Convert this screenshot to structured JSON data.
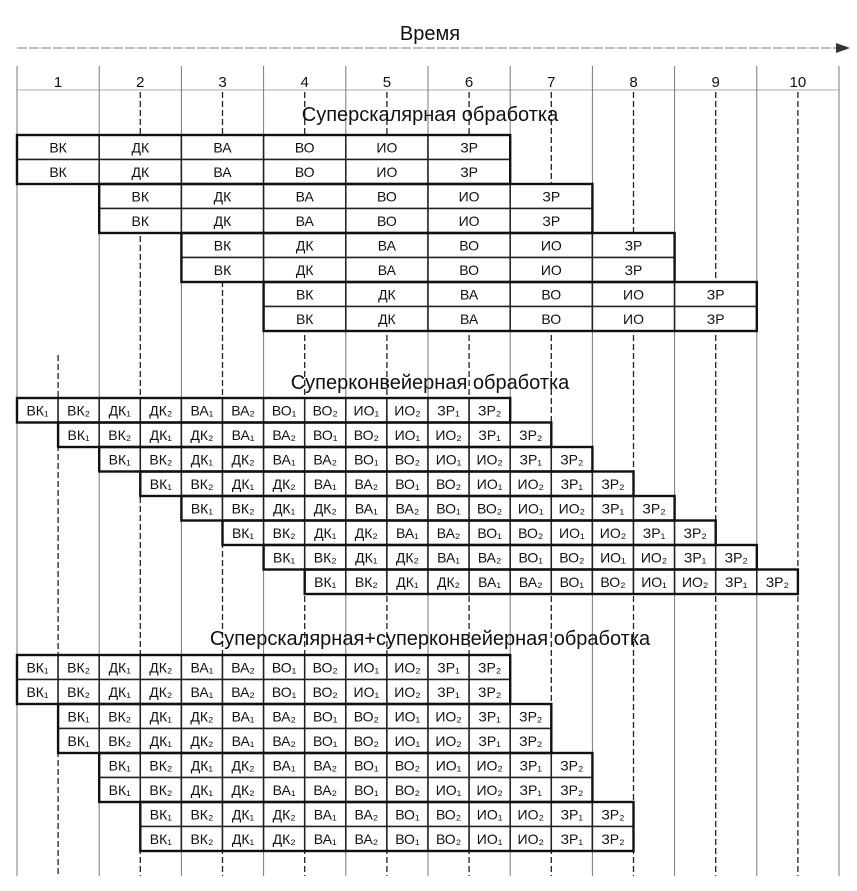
{
  "axis": {
    "title": "Время",
    "time_labels": [
      "1",
      "2",
      "3",
      "4",
      "5",
      "6",
      "7",
      "8",
      "9",
      "10"
    ]
  },
  "sections": [
    {
      "title": "Суперскалярная обработка",
      "unit": "cycle",
      "rows_per_group": 2,
      "starts": [
        0,
        0,
        1,
        1,
        2,
        2,
        3,
        3
      ],
      "stages": [
        "ВК",
        "ДК",
        "ВА",
        "ВО",
        "ИО",
        "ЗР"
      ]
    },
    {
      "title": "Суперконвейерная обработка",
      "unit": "half-cycle",
      "rows_per_group": 1,
      "starts": [
        0,
        1,
        2,
        3,
        4,
        5,
        6,
        7
      ],
      "stages": [
        "ВК₁",
        "ВК₂",
        "ДК₁",
        "ДК₂",
        "ВА₁",
        "ВА₂",
        "ВО₁",
        "ВО₂",
        "ИО₁",
        "ИО₂",
        "ЗР₁",
        "ЗР₂"
      ]
    },
    {
      "title": "Суперскалярная+суперконвейерная обработка",
      "unit": "half-cycle",
      "rows_per_group": 2,
      "starts": [
        0,
        0,
        1,
        1,
        2,
        2,
        3,
        3
      ],
      "stages": [
        "ВК₁",
        "ВК₂",
        "ДК₁",
        "ДК₂",
        "ВА₁",
        "ВА₂",
        "ВО₁",
        "ВО₂",
        "ИО₁",
        "ИО₂",
        "ЗР₁",
        "ЗР₂"
      ]
    }
  ]
}
